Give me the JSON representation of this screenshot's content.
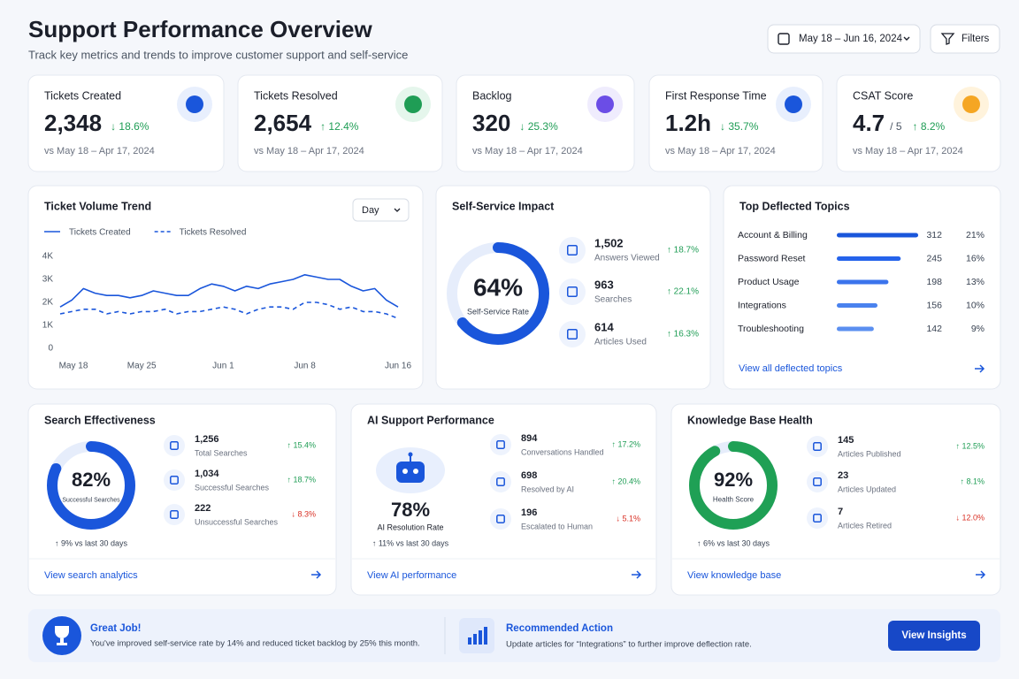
{
  "header": {
    "title": "Support Performance Overview",
    "subtitle": "Track key metrics and trends to improve customer support and self-service",
    "date_range": "May 18 – Jun 16, 2024",
    "filters": "Filters"
  },
  "kpis": [
    {
      "label": "Tickets Created",
      "value": "2,348",
      "delta": "↓ 18.6%",
      "comparison": "vs May 18 – Apr 17, 2024"
    },
    {
      "label": "Tickets Resolved",
      "value": "2,654",
      "delta": "↑ 12.4%",
      "comparison": "vs May 18 – Apr 17, 2024"
    },
    {
      "label": "Backlog",
      "value": "320",
      "delta": "↓ 25.3%",
      "comparison": "vs May 18 – Apr 17, 2024"
    },
    {
      "label": "First Response Time",
      "value": "1.2h",
      "delta": "↓ 35.7%",
      "comparison": "vs May 18 – Apr 17, 2024"
    },
    {
      "label": "CSAT Score",
      "value": "4.7",
      "unit": "/ 5",
      "delta": "↑ 8.2%",
      "comparison": "vs May 18 – Apr 17, 2024"
    }
  ],
  "chart_data": {
    "type": "line",
    "title": "Ticket Volume Trend",
    "range_select": "Day",
    "categories": [
      "May 18",
      null,
      null,
      null,
      null,
      null,
      null,
      "May 25",
      null,
      null,
      null,
      null,
      null,
      null,
      "Jun 1",
      null,
      null,
      null,
      null,
      null,
      null,
      "Jun 8",
      null,
      null,
      null,
      null,
      null,
      null,
      null,
      "Jun 16"
    ],
    "series": [
      {
        "name": "Tickets Created",
        "color": "#1a56db",
        "line_style": "solid",
        "values": [
          1800,
          2100,
          2600,
          2400,
          2300,
          2300,
          2200,
          2300,
          2500,
          2400,
          2300,
          2300,
          2600,
          2800,
          2700,
          2500,
          2700,
          2600,
          2800,
          2900,
          3000,
          3200,
          3100,
          3000,
          3000,
          2700,
          2500,
          2600,
          2100,
          1800
        ]
      },
      {
        "name": "Tickets Resolved",
        "color": "#1a56db",
        "line_style": "dashed",
        "values": [
          1500,
          1600,
          1700,
          1700,
          1500,
          1600,
          1500,
          1600,
          1600,
          1700,
          1500,
          1600,
          1600,
          1700,
          1800,
          1700,
          1500,
          1700,
          1800,
          1800,
          1700,
          2000,
          2000,
          1900,
          1700,
          1800,
          1600,
          1600,
          1500,
          1300
        ]
      }
    ],
    "ylim": [
      0,
      4000
    ],
    "yticks": [
      0,
      {
        "value": 1000,
        "label": "1K"
      },
      {
        "value": 2000,
        "label": "2K"
      },
      {
        "value": 3000,
        "label": "3K"
      },
      {
        "value": 4000,
        "label": "4K"
      }
    ],
    "grid": false
  },
  "self_service": {
    "title": "Self-Service Impact",
    "ring": {
      "value": 64,
      "label": "64%",
      "caption": "Self-Service Rate"
    },
    "items": [
      {
        "value": "1,502",
        "label": "Answers Viewed",
        "delta": "↑ 18.7%"
      },
      {
        "value": "963",
        "label": "Searches",
        "delta": "↑ 22.1%"
      },
      {
        "value": "614",
        "label": "Articles Used",
        "delta": "↑ 16.3%"
      }
    ]
  },
  "deflected": {
    "title": "Top Deflected Topics",
    "topics": [
      {
        "name": "Account & Billing",
        "count": 312,
        "share": "21%"
      },
      {
        "name": "Password Reset",
        "count": 245,
        "share": "16%"
      },
      {
        "name": "Product Usage",
        "count": 198,
        "share": "13%"
      },
      {
        "name": "Integrations",
        "count": 156,
        "share": "10%"
      },
      {
        "name": "Troubleshooting",
        "count": 142,
        "share": "9%"
      }
    ],
    "link": "View all deflected topics"
  },
  "search": {
    "title": "Search Effectiveness",
    "ring": {
      "value": 82,
      "label": "82%",
      "caption": "Successful Searches"
    },
    "trend": "↑ 9% vs last 30 days",
    "items": [
      {
        "value": "1,256",
        "label": "Total Searches",
        "delta": "↑ 15.4%"
      },
      {
        "value": "1,034",
        "label": "Successful Searches",
        "delta": "↑ 18.7%"
      },
      {
        "value": "222",
        "label": "Unsuccessful Searches",
        "delta": "↓ 8.3%"
      }
    ],
    "link": "View search analytics"
  },
  "ai": {
    "title": "AI Support Performance",
    "rate": "78%",
    "rate_label": "AI Resolution Rate",
    "trend": "↑ 11% vs last 30 days",
    "items": [
      {
        "value": "894",
        "label": "Conversations Handled",
        "delta": "↑ 17.2%"
      },
      {
        "value": "698",
        "label": "Resolved by AI",
        "delta": "↑ 20.4%"
      },
      {
        "value": "196",
        "label": "Escalated to Human",
        "delta": "↓ 5.1%"
      }
    ],
    "link": "View AI performance"
  },
  "kb": {
    "title": "Knowledge Base Health",
    "ring": {
      "value": 92,
      "label": "92%",
      "caption": "Health Score",
      "color": "#1fa055"
    },
    "trend": "↑ 6% vs last 30 days",
    "items": [
      {
        "value": "145",
        "label": "Articles Published",
        "delta": "↑ 12.5%"
      },
      {
        "value": "23",
        "label": "Articles Updated",
        "delta": "↑ 8.1%"
      },
      {
        "value": "7",
        "label": "Articles Retired",
        "delta": "↓ 12.0%"
      }
    ],
    "link": "View knowledge base"
  },
  "banner": {
    "praise_title": "Great Job!",
    "praise_text": "You've improved self-service rate by 14% and reduced ticket backlog by 25% this month.",
    "action_title": "Recommended Action",
    "action_text": "Update articles for “Integrations” to further improve deflection rate.",
    "button": "View Insights"
  }
}
